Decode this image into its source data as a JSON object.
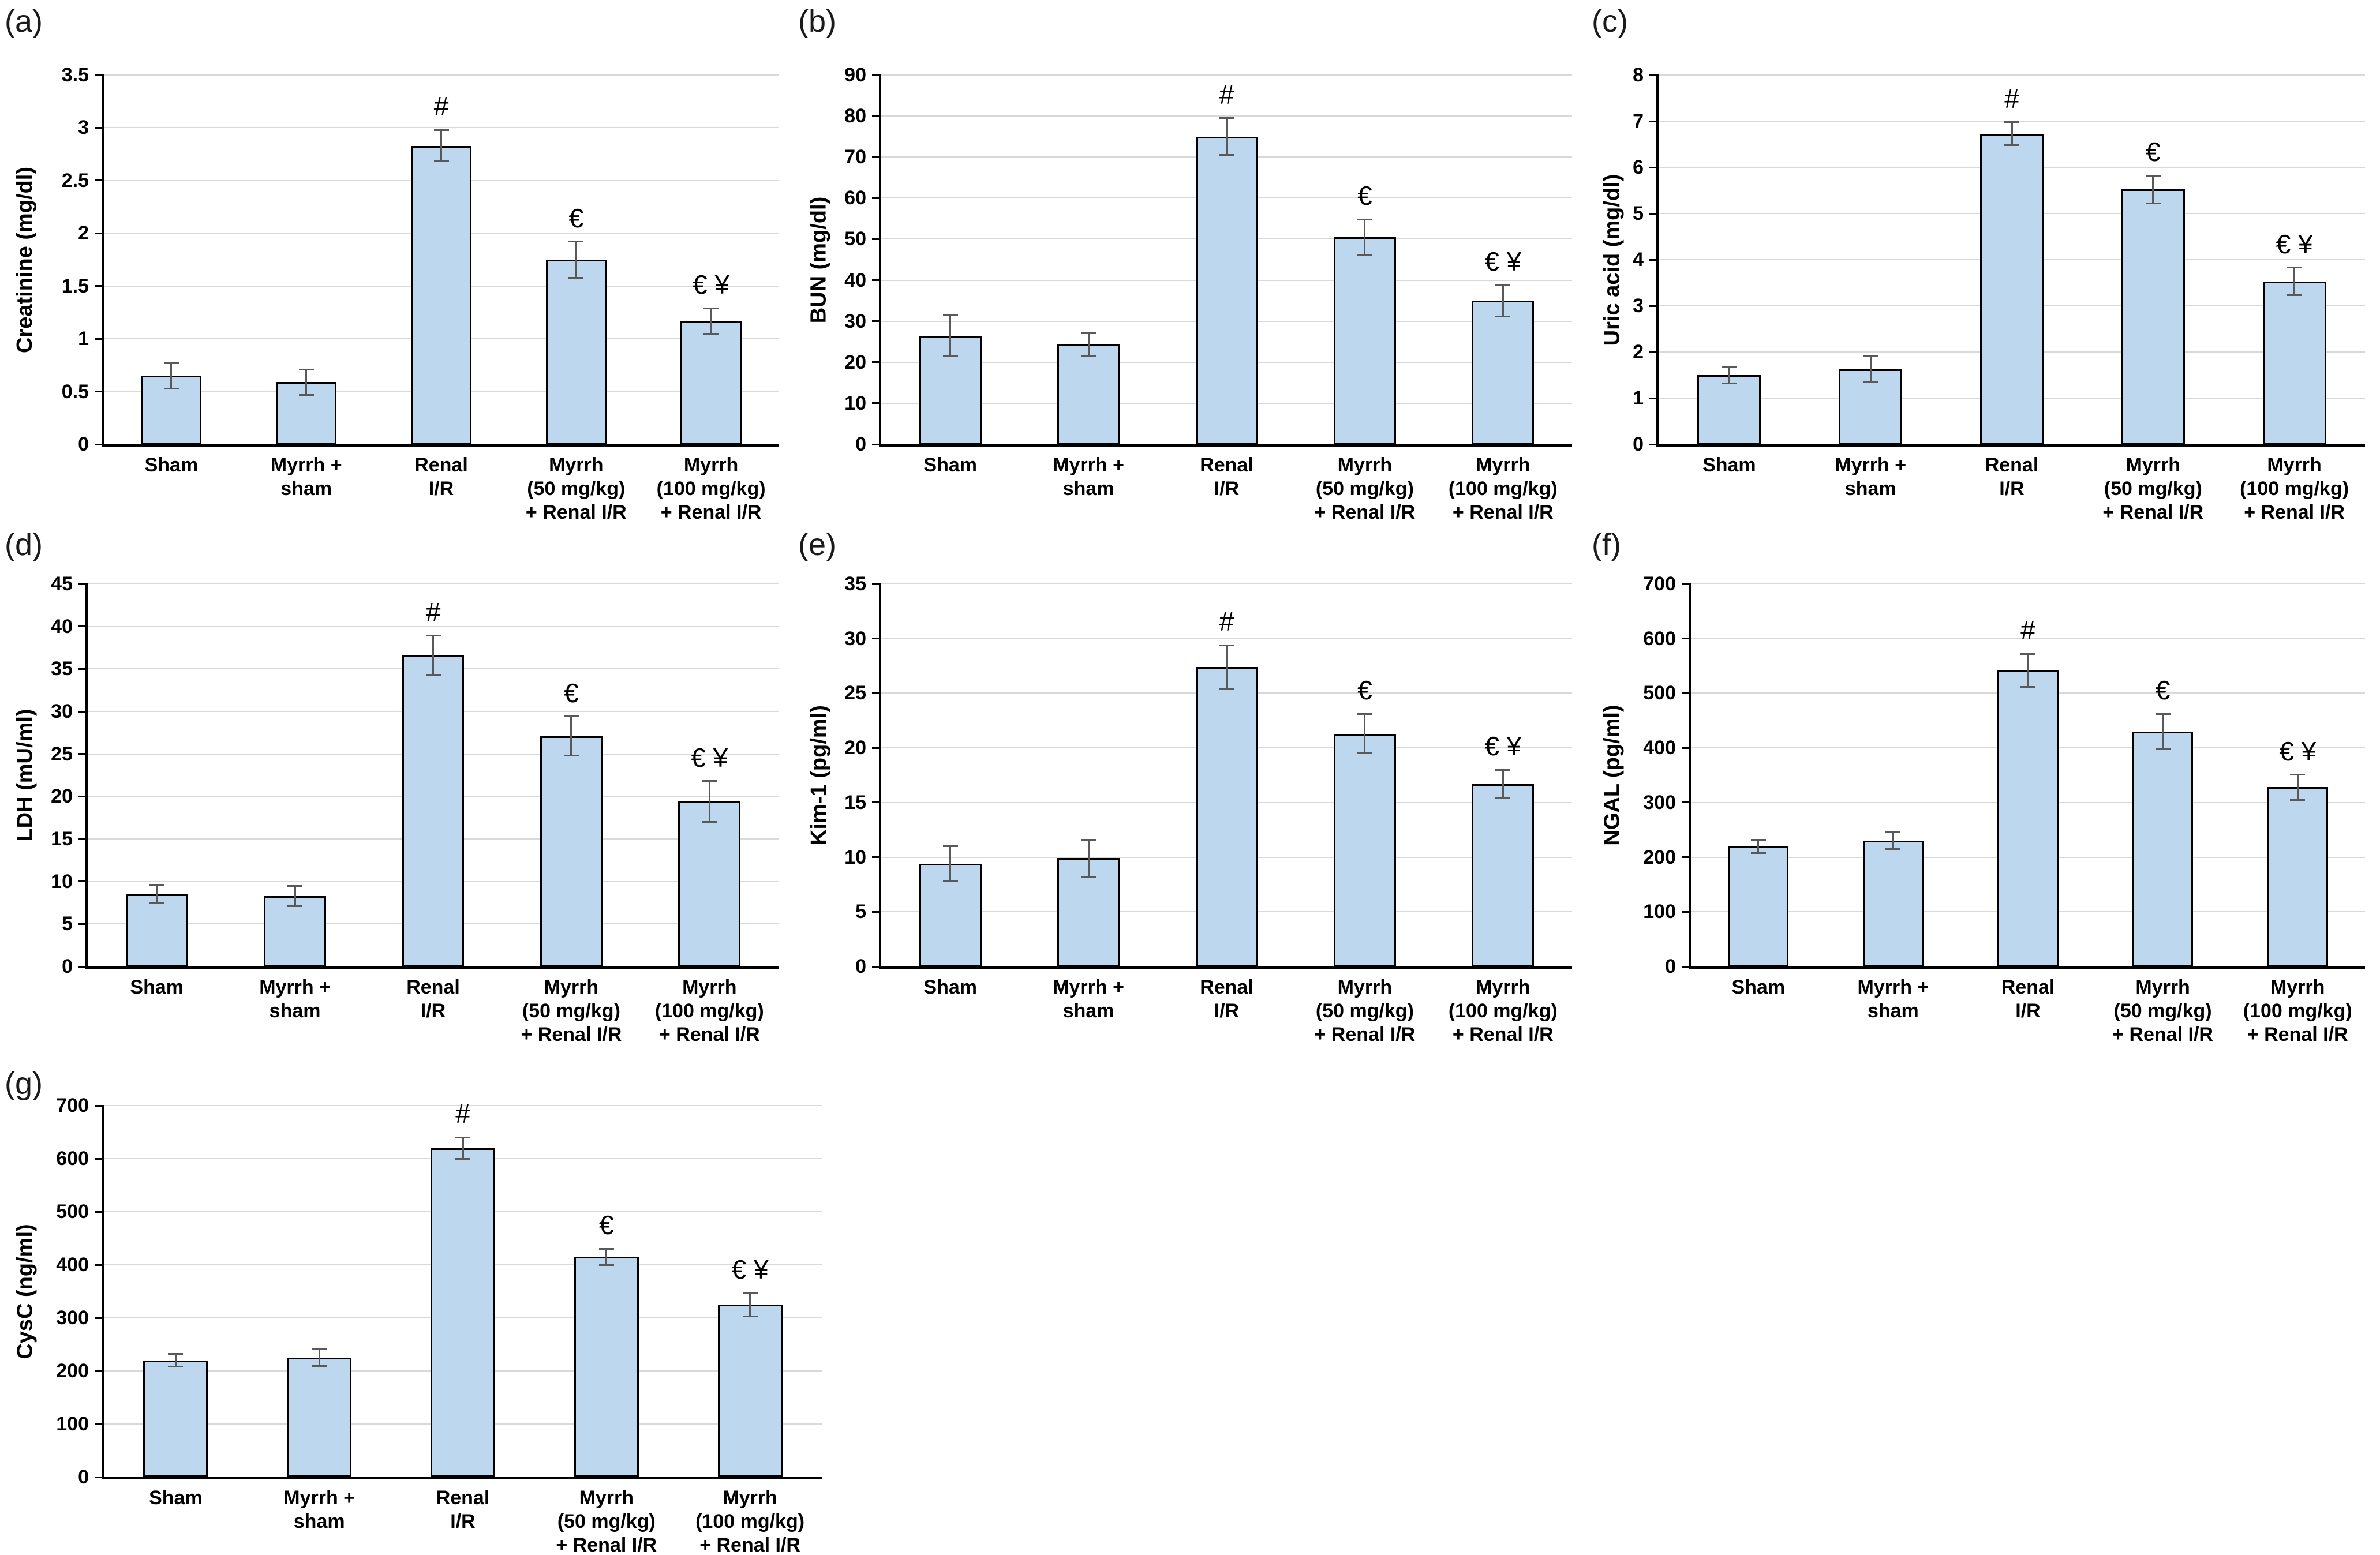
{
  "figure": {
    "bar_fill": "#BDD7EE",
    "bar_border": "#000000",
    "error_bar_color": "#595959",
    "gridline_color": "#D9D9D9",
    "axis_color": "#000000",
    "background": "#FFFFFF"
  },
  "chart_data": [
    {
      "type": "bar",
      "panel": "(a)",
      "ylabel": "Creatinine (mg/dl)",
      "ylim": [
        0,
        3.5
      ],
      "yticks": [
        "0",
        "0.5",
        "1",
        "1.5",
        "2",
        "2.5",
        "3",
        "3.5"
      ],
      "grid": true,
      "categories": [
        "Sham",
        "Myrrh +\nsham",
        "Renal\nI/R",
        "Myrrh\n(50 mg/kg)\n+ Renal I/R",
        "Myrrh\n(100 mg/kg)\n+ Renal I/R"
      ],
      "values": [
        0.65,
        0.59,
        2.83,
        1.75,
        1.17
      ],
      "errors": [
        0.12,
        0.12,
        0.15,
        0.17,
        0.12
      ],
      "annotations": [
        "",
        "",
        "#",
        "€",
        "€ ¥"
      ]
    },
    {
      "type": "bar",
      "panel": "(b)",
      "ylabel": "BUN (mg/dl)",
      "ylim": [
        0,
        90
      ],
      "yticks": [
        "0",
        "10",
        "20",
        "30",
        "40",
        "50",
        "60",
        "70",
        "80",
        "90"
      ],
      "grid": true,
      "categories": [
        "Sham",
        "Myrrh +\nsham",
        "Renal\nI/R",
        "Myrrh\n(50 mg/kg)\n+ Renal I/R",
        "Myrrh\n(100 mg/kg)\n+ Renal I/R"
      ],
      "values": [
        26.5,
        24.3,
        75,
        50.5,
        35
      ],
      "errors": [
        5,
        2.8,
        4.5,
        4.3,
        3.8
      ],
      "annotations": [
        "",
        "",
        "#",
        "€",
        "€ ¥"
      ]
    },
    {
      "type": "bar",
      "panel": "(c)",
      "ylabel": "Uric acid (mg/dl)",
      "ylim": [
        0,
        8
      ],
      "yticks": [
        "0",
        "1",
        "2",
        "3",
        "4",
        "5",
        "6",
        "7",
        "8"
      ],
      "grid": true,
      "categories": [
        "Sham",
        "Myrrh +\nsham",
        "Renal\nI/R",
        "Myrrh\n(50 mg/kg)\n+ Renal I/R",
        "Myrrh\n(100 mg/kg)\n+ Renal I/R"
      ],
      "values": [
        1.5,
        1.63,
        6.73,
        5.52,
        3.53
      ],
      "errors": [
        0.18,
        0.28,
        0.25,
        0.3,
        0.3
      ],
      "annotations": [
        "",
        "",
        "#",
        "€",
        "€ ¥"
      ]
    },
    {
      "type": "bar",
      "panel": "(d)",
      "ylabel": "LDH (mU/ml)",
      "ylim": [
        0,
        45
      ],
      "yticks": [
        "0",
        "5",
        "10",
        "15",
        "20",
        "25",
        "30",
        "35",
        "40",
        "45"
      ],
      "grid": true,
      "categories": [
        "Sham",
        "Myrrh +\nsham",
        "Renal\nI/R",
        "Myrrh\n(50 mg/kg)\n+ Renal I/R",
        "Myrrh\n(100 mg/kg)\n+ Renal I/R"
      ],
      "values": [
        8.5,
        8.3,
        36.6,
        27.1,
        19.4
      ],
      "errors": [
        1.1,
        1.2,
        2.3,
        2.3,
        2.4
      ],
      "annotations": [
        "",
        "",
        "#",
        "€",
        "€ ¥"
      ]
    },
    {
      "type": "bar",
      "panel": "(e)",
      "ylabel": "Kim-1 (pg/ml)",
      "ylim": [
        0,
        35
      ],
      "yticks": [
        "0",
        "5",
        "10",
        "15",
        "20",
        "25",
        "30",
        "35"
      ],
      "grid": true,
      "categories": [
        "Sham",
        "Myrrh +\nsham",
        "Renal\nI/R",
        "Myrrh\n(50 mg/kg)\n+ Renal I/R",
        "Myrrh\n(100 mg/kg)\n+ Renal I/R"
      ],
      "values": [
        9.4,
        9.9,
        27.4,
        21.3,
        16.7
      ],
      "errors": [
        1.6,
        1.7,
        2.0,
        1.8,
        1.3
      ],
      "annotations": [
        "",
        "",
        "#",
        "€",
        "€ ¥"
      ]
    },
    {
      "type": "bar",
      "panel": "(f)",
      "ylabel": "NGAL (pg/ml)",
      "ylim": [
        0,
        700
      ],
      "yticks": [
        "0",
        "100",
        "200",
        "300",
        "400",
        "500",
        "600",
        "700"
      ],
      "grid": true,
      "categories": [
        "Sham",
        "Myrrh +\nsham",
        "Renal\nI/R",
        "Myrrh\n(50 mg/kg)\n+ Renal I/R",
        "Myrrh\n(100 mg/kg)\n+ Renal I/R"
      ],
      "values": [
        220,
        230,
        542,
        430,
        328
      ],
      "errors": [
        12,
        15,
        30,
        32,
        23
      ],
      "annotations": [
        "",
        "",
        "#",
        "€",
        "€ ¥"
      ]
    },
    {
      "type": "bar",
      "panel": "(g)",
      "ylabel": "CysC (ng/ml)",
      "ylim": [
        0,
        700
      ],
      "yticks": [
        "0",
        "100",
        "200",
        "300",
        "400",
        "500",
        "600",
        "700"
      ],
      "grid": true,
      "categories": [
        "Sham",
        "Myrrh +\nsham",
        "Renal\nI/R",
        "Myrrh\n(50 mg/kg)\n+ Renal I/R",
        "Myrrh\n(100 mg/kg)\n+ Renal I/R"
      ],
      "values": [
        220,
        225,
        620,
        415,
        325
      ],
      "errors": [
        12,
        16,
        20,
        15,
        22
      ],
      "annotations": [
        "",
        "",
        "#",
        "€",
        "€ ¥"
      ]
    }
  ]
}
